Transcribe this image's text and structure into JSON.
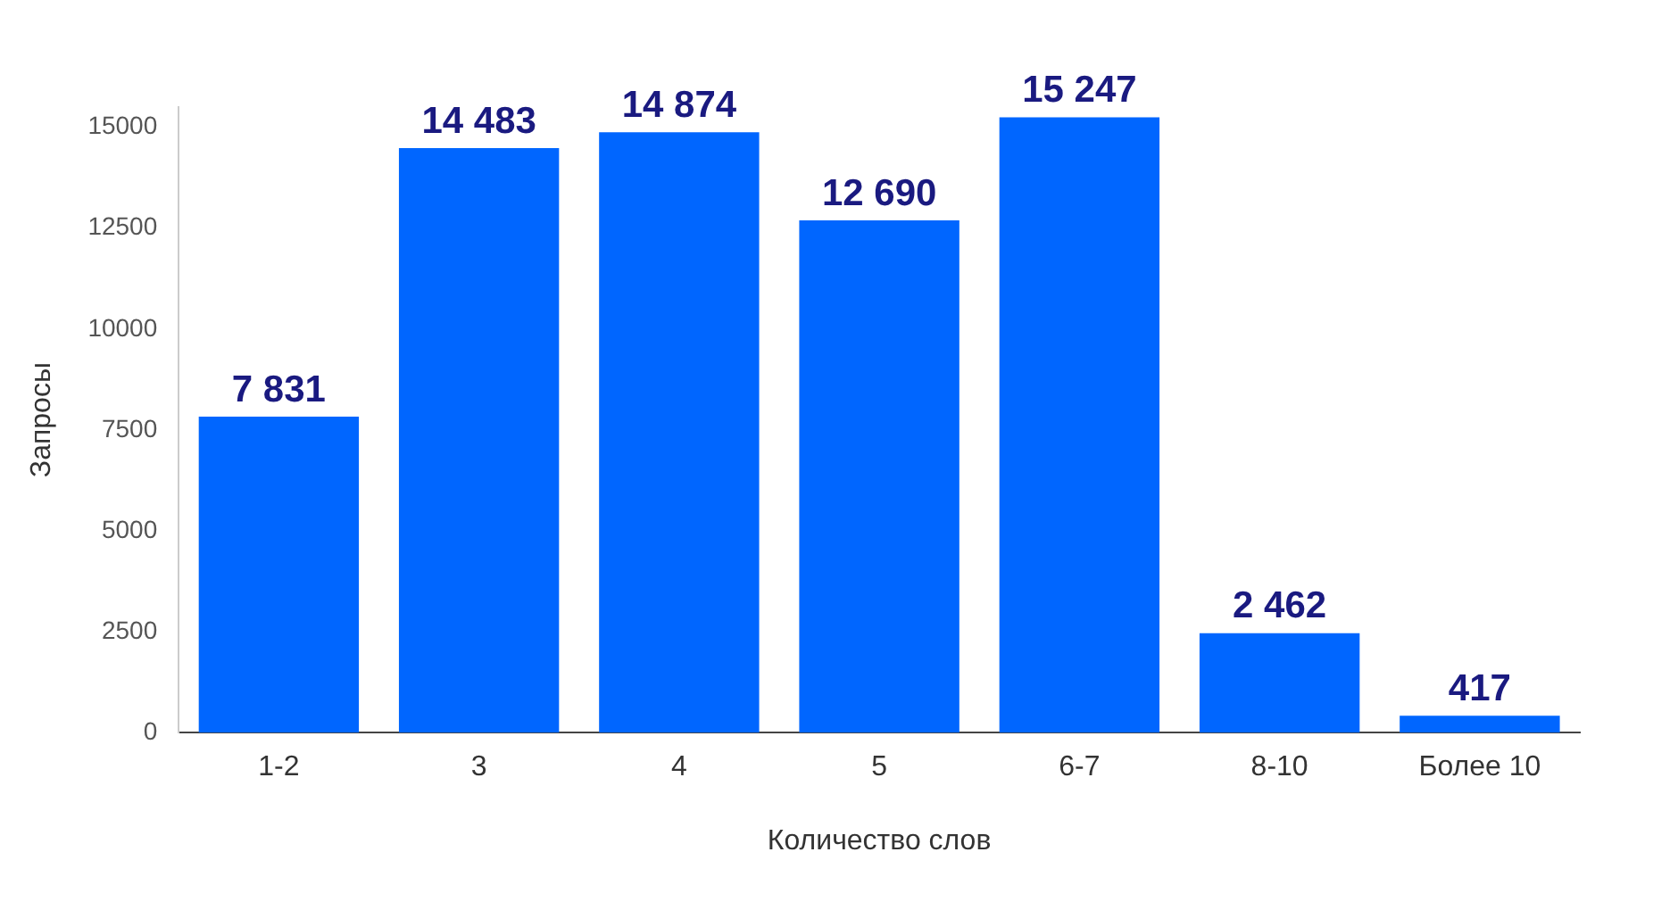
{
  "chart_data": {
    "type": "bar",
    "xlabel": "Количество слов",
    "ylabel": "Запросы",
    "categories": [
      "1-2",
      "3",
      "4",
      "5",
      "6-7",
      "8-10",
      "Более 10"
    ],
    "values": [
      7831,
      14483,
      14874,
      12690,
      15247,
      2462,
      417
    ],
    "value_labels": [
      "7 831",
      "14 483",
      "14 874",
      "12 690",
      "15 247",
      "2 462",
      "417"
    ],
    "color": "#0066ff",
    "ylim": [
      0,
      15500
    ],
    "yticks": [
      0,
      2500,
      5000,
      7500,
      10000,
      12500,
      15000
    ],
    "grid": false,
    "legend": false
  }
}
